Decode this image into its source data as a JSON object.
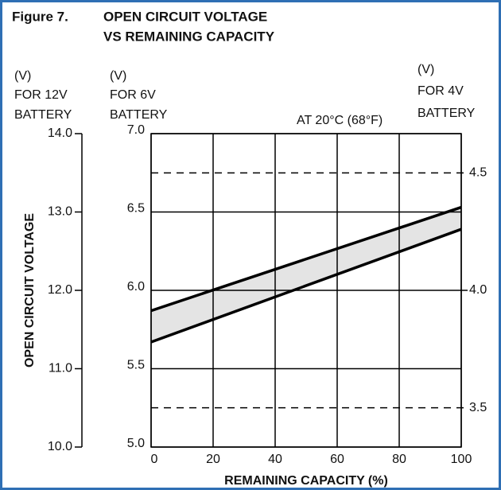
{
  "chart_data": {
    "type": "band",
    "title": [
      "Figure 7.",
      "OPEN CIRCUIT VOLTAGE",
      "VS REMAINING CAPACITY"
    ],
    "annotation": "AT 20°C (68°F)",
    "ylabel": "OPEN CIRCUIT VOLTAGE",
    "xlabel": "REMAINING CAPACITY (%)",
    "unit_12v": [
      "(V)",
      "FOR 12V",
      "BATTERY"
    ],
    "unit_6v": [
      "(V)",
      "FOR 6V",
      "BATTERY"
    ],
    "unit_4v": [
      "(V)",
      "FOR 4V",
      "BATTERY"
    ],
    "x": [
      0,
      100
    ],
    "xlim": [
      0,
      100
    ],
    "xticks": [
      0,
      20,
      40,
      60,
      80,
      100
    ],
    "ylim": [
      5.0,
      7.0
    ],
    "yticks": [
      {
        "value": 5.0,
        "label": "5.0"
      },
      {
        "value": 5.5,
        "label": "5.5"
      },
      {
        "value": 6.0,
        "label": "6.0"
      },
      {
        "value": 6.5,
        "label": "6.5"
      },
      {
        "value": 7.0,
        "label": "7.0"
      }
    ],
    "y2lim": [
      10.0,
      14.0
    ],
    "y2ticks": [
      {
        "value": 10.0,
        "label": "10.0"
      },
      {
        "value": 11.0,
        "label": "11.0"
      },
      {
        "value": 12.0,
        "label": "12.0"
      },
      {
        "value": 13.0,
        "label": "13.0"
      },
      {
        "value": 14.0,
        "label": "14.0"
      }
    ],
    "y3lim": [
      3.333,
      4.667
    ],
    "y3ticks": [
      3.5,
      {
        "value": 4.0,
        "label": "4.0"
      },
      4.5
    ],
    "series": [
      {
        "color": "#000000",
        "values": [
          5.87,
          6.53
        ]
      },
      {
        "color": "#000000",
        "values": [
          5.67,
          6.39
        ]
      }
    ],
    "fill": "#e4e4e4",
    "grid": true
  }
}
